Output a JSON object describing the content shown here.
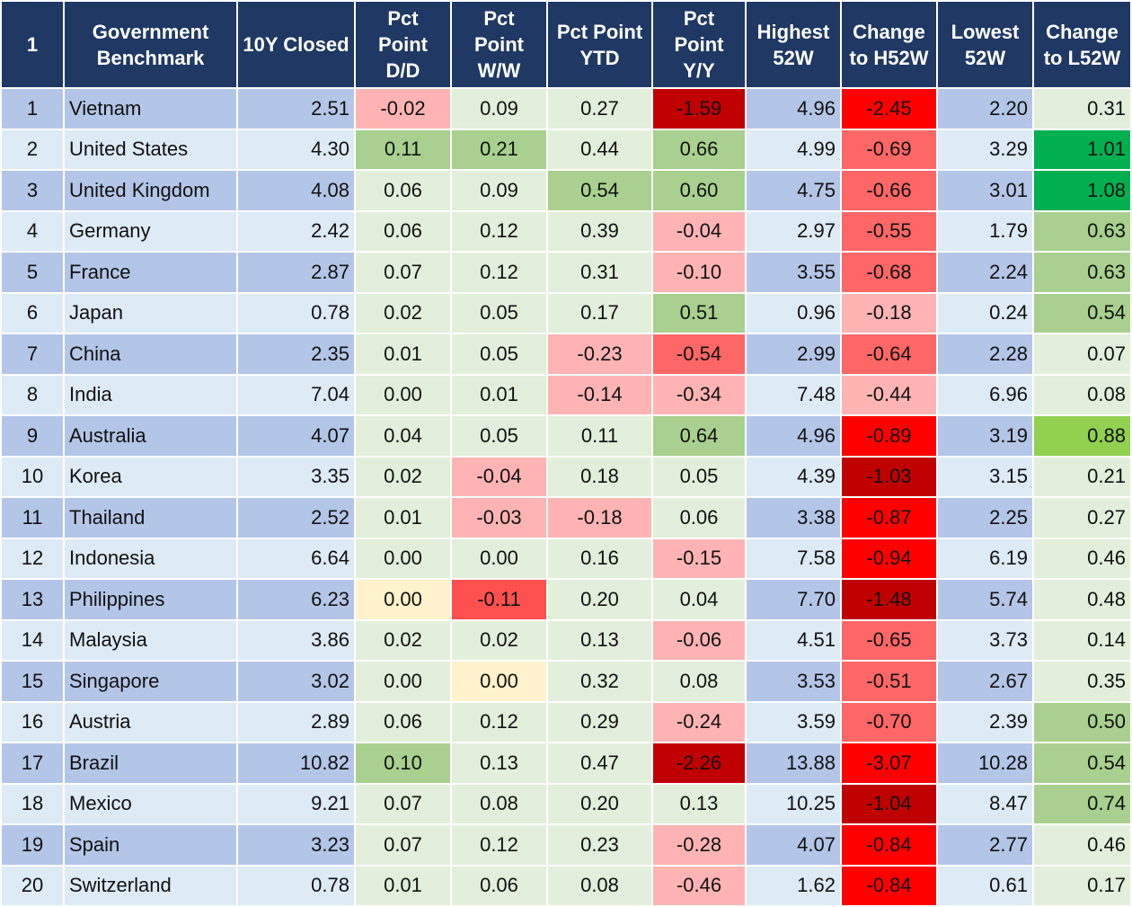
{
  "chart_data": {
    "type": "table",
    "columns": [
      "1",
      "Government Benchmark",
      "10Y Closed",
      "Pct Point D/D",
      "Pct Point W/W",
      "Pct Point YTD",
      "Pct Point Y/Y",
      "Highest 52W",
      "Change to H52W",
      "Lowest 52W",
      "Change to L52W"
    ],
    "rows": [
      [
        "1",
        "Vietnam",
        "2.51",
        "-0.02",
        "0.09",
        "0.27",
        "-1.59",
        "4.96",
        "-2.45",
        "2.20",
        "0.31"
      ],
      [
        "2",
        "United States",
        "4.30",
        "0.11",
        "0.21",
        "0.44",
        "0.66",
        "4.99",
        "-0.69",
        "3.29",
        "1.01"
      ],
      [
        "3",
        "United Kingdom",
        "4.08",
        "0.06",
        "0.09",
        "0.54",
        "0.60",
        "4.75",
        "-0.66",
        "3.01",
        "1.08"
      ],
      [
        "4",
        "Germany",
        "2.42",
        "0.06",
        "0.12",
        "0.39",
        "-0.04",
        "2.97",
        "-0.55",
        "1.79",
        "0.63"
      ],
      [
        "5",
        "France",
        "2.87",
        "0.07",
        "0.12",
        "0.31",
        "-0.10",
        "3.55",
        "-0.68",
        "2.24",
        "0.63"
      ],
      [
        "6",
        "Japan",
        "0.78",
        "0.02",
        "0.05",
        "0.17",
        "0.51",
        "0.96",
        "-0.18",
        "0.24",
        "0.54"
      ],
      [
        "7",
        "China",
        "2.35",
        "0.01",
        "0.05",
        "-0.23",
        "-0.54",
        "2.99",
        "-0.64",
        "2.28",
        "0.07"
      ],
      [
        "8",
        "India",
        "7.04",
        "0.00",
        "0.01",
        "-0.14",
        "-0.34",
        "7.48",
        "-0.44",
        "6.96",
        "0.08"
      ],
      [
        "9",
        "Australia",
        "4.07",
        "0.04",
        "0.05",
        "0.11",
        "0.64",
        "4.96",
        "-0.89",
        "3.19",
        "0.88"
      ],
      [
        "10",
        "Korea",
        "3.35",
        "0.02",
        "-0.04",
        "0.18",
        "0.05",
        "4.39",
        "-1.03",
        "3.15",
        "0.21"
      ],
      [
        "11",
        "Thailand",
        "2.52",
        "0.01",
        "-0.03",
        "-0.18",
        "0.06",
        "3.38",
        "-0.87",
        "2.25",
        "0.27"
      ],
      [
        "12",
        "Indonesia",
        "6.64",
        "0.00",
        "0.00",
        "0.16",
        "-0.15",
        "7.58",
        "-0.94",
        "6.19",
        "0.46"
      ],
      [
        "13",
        "Philippines",
        "6.23",
        "0.00",
        "-0.11",
        "0.20",
        "0.04",
        "7.70",
        "-1.48",
        "5.74",
        "0.48"
      ],
      [
        "14",
        "Malaysia",
        "3.86",
        "0.02",
        "0.02",
        "0.13",
        "-0.06",
        "4.51",
        "-0.65",
        "3.73",
        "0.14"
      ],
      [
        "15",
        "Singapore",
        "3.02",
        "0.00",
        "0.00",
        "0.32",
        "0.08",
        "3.53",
        "-0.51",
        "2.67",
        "0.35"
      ],
      [
        "16",
        "Austria",
        "2.89",
        "0.06",
        "0.12",
        "0.29",
        "-0.24",
        "3.59",
        "-0.70",
        "2.39",
        "0.50"
      ],
      [
        "17",
        "Brazil",
        "10.82",
        "0.10",
        "0.13",
        "0.47",
        "-2.26",
        "13.88",
        "-3.07",
        "10.28",
        "0.54"
      ],
      [
        "18",
        "Mexico",
        "9.21",
        "0.07",
        "0.08",
        "0.20",
        "0.13",
        "10.25",
        "-1.04",
        "8.47",
        "0.74"
      ],
      [
        "19",
        "Spain",
        "3.23",
        "0.07",
        "0.12",
        "0.23",
        "-0.28",
        "4.07",
        "-0.84",
        "2.77",
        "0.46"
      ],
      [
        "20",
        "Switzerland",
        "0.78",
        "0.01",
        "0.06",
        "0.08",
        "-0.46",
        "1.62",
        "-0.84",
        "0.61",
        "0.17"
      ]
    ],
    "cell_colors": [
      [
        "#b4c6e7",
        "#b4c6e7",
        "#b4c6e7",
        "#ffb3b3",
        "#e2efda",
        "#e2efda",
        "#c00000",
        "#b4c6e7",
        "#ff0000",
        "#b4c6e7",
        "#e2efda"
      ],
      [
        "#ddebf7",
        "#ddebf7",
        "#ddebf7",
        "#a9d08e",
        "#a9d08e",
        "#e2efda",
        "#a9d08e",
        "#ddebf7",
        "#ff6666",
        "#ddebf7",
        "#00b050"
      ],
      [
        "#b4c6e7",
        "#b4c6e7",
        "#b4c6e7",
        "#e2efda",
        "#e2efda",
        "#a9d08e",
        "#a9d08e",
        "#b4c6e7",
        "#ff6666",
        "#b4c6e7",
        "#00b050"
      ],
      [
        "#ddebf7",
        "#ddebf7",
        "#ddebf7",
        "#e2efda",
        "#e2efda",
        "#e2efda",
        "#ffb3b3",
        "#ddebf7",
        "#ff6666",
        "#ddebf7",
        "#a9d08e"
      ],
      [
        "#b4c6e7",
        "#b4c6e7",
        "#b4c6e7",
        "#e2efda",
        "#e2efda",
        "#e2efda",
        "#ffb3b3",
        "#b4c6e7",
        "#ff6666",
        "#b4c6e7",
        "#a9d08e"
      ],
      [
        "#ddebf7",
        "#ddebf7",
        "#ddebf7",
        "#e2efda",
        "#e2efda",
        "#e2efda",
        "#a9d08e",
        "#ddebf7",
        "#ffb3b3",
        "#ddebf7",
        "#a9d08e"
      ],
      [
        "#b4c6e7",
        "#b4c6e7",
        "#b4c6e7",
        "#e2efda",
        "#e2efda",
        "#ffb3b3",
        "#ff6666",
        "#b4c6e7",
        "#ff6666",
        "#b4c6e7",
        "#e2efda"
      ],
      [
        "#ddebf7",
        "#ddebf7",
        "#ddebf7",
        "#e2efda",
        "#e2efda",
        "#ffb3b3",
        "#ffb3b3",
        "#ddebf7",
        "#ffb3b3",
        "#ddebf7",
        "#e2efda"
      ],
      [
        "#b4c6e7",
        "#b4c6e7",
        "#b4c6e7",
        "#e2efda",
        "#e2efda",
        "#e2efda",
        "#a9d08e",
        "#b4c6e7",
        "#ff0000",
        "#b4c6e7",
        "#92d050"
      ],
      [
        "#ddebf7",
        "#ddebf7",
        "#ddebf7",
        "#e2efda",
        "#ffb3b3",
        "#e2efda",
        "#e2efda",
        "#ddebf7",
        "#c00000",
        "#ddebf7",
        "#e2efda"
      ],
      [
        "#b4c6e7",
        "#b4c6e7",
        "#b4c6e7",
        "#e2efda",
        "#ffb3b3",
        "#ffb3b3",
        "#e2efda",
        "#b4c6e7",
        "#ff0000",
        "#b4c6e7",
        "#e2efda"
      ],
      [
        "#ddebf7",
        "#ddebf7",
        "#ddebf7",
        "#e2efda",
        "#e2efda",
        "#e2efda",
        "#ffb3b3",
        "#ddebf7",
        "#ff0000",
        "#ddebf7",
        "#e2efda"
      ],
      [
        "#b4c6e7",
        "#b4c6e7",
        "#b4c6e7",
        "#fff2cc",
        "#ff5050",
        "#e2efda",
        "#e2efda",
        "#b4c6e7",
        "#c00000",
        "#b4c6e7",
        "#e2efda"
      ],
      [
        "#ddebf7",
        "#ddebf7",
        "#ddebf7",
        "#e2efda",
        "#e2efda",
        "#e2efda",
        "#ffb3b3",
        "#ddebf7",
        "#ff6666",
        "#ddebf7",
        "#e2efda"
      ],
      [
        "#b4c6e7",
        "#b4c6e7",
        "#b4c6e7",
        "#e2efda",
        "#fff2cc",
        "#e2efda",
        "#e2efda",
        "#b4c6e7",
        "#ff6666",
        "#b4c6e7",
        "#e2efda"
      ],
      [
        "#ddebf7",
        "#ddebf7",
        "#ddebf7",
        "#e2efda",
        "#e2efda",
        "#e2efda",
        "#ffb3b3",
        "#ddebf7",
        "#ff6666",
        "#ddebf7",
        "#a9d08e"
      ],
      [
        "#b4c6e7",
        "#b4c6e7",
        "#b4c6e7",
        "#a9d08e",
        "#e2efda",
        "#e2efda",
        "#c00000",
        "#b4c6e7",
        "#ff0000",
        "#b4c6e7",
        "#a9d08e"
      ],
      [
        "#ddebf7",
        "#ddebf7",
        "#ddebf7",
        "#e2efda",
        "#e2efda",
        "#e2efda",
        "#e2efda",
        "#ddebf7",
        "#c00000",
        "#ddebf7",
        "#a9d08e"
      ],
      [
        "#b4c6e7",
        "#b4c6e7",
        "#b4c6e7",
        "#e2efda",
        "#e2efda",
        "#e2efda",
        "#ffb3b3",
        "#b4c6e7",
        "#ff0000",
        "#b4c6e7",
        "#e2efda"
      ],
      [
        "#ddebf7",
        "#ddebf7",
        "#ddebf7",
        "#e2efda",
        "#e2efda",
        "#e2efda",
        "#ffb3b3",
        "#ddebf7",
        "#ff0000",
        "#ddebf7",
        "#e2efda"
      ]
    ],
    "header_color": "#1f3864"
  }
}
